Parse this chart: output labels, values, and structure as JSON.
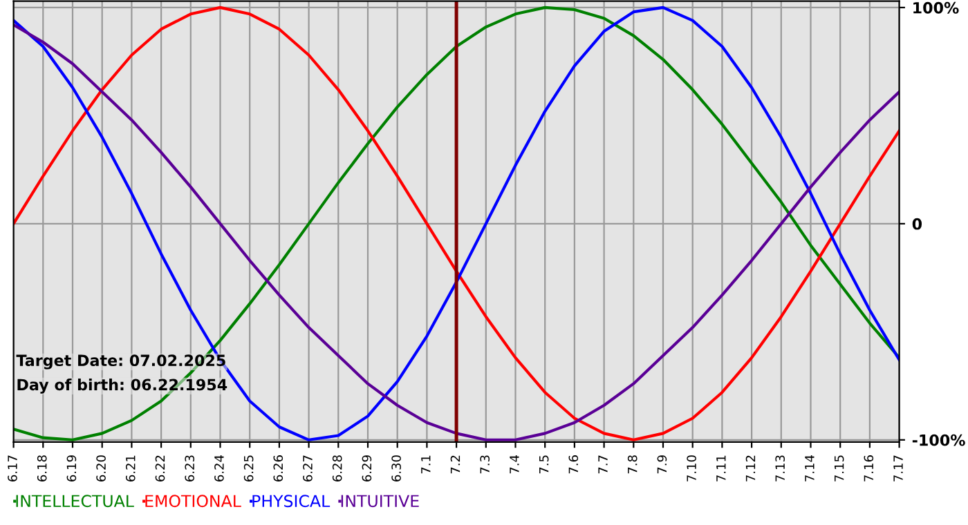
{
  "chart_data": {
    "type": "line",
    "categories": [
      "6.17",
      "6.18",
      "6.19",
      "6.20",
      "6.21",
      "6.22",
      "6.23",
      "6.24",
      "6.25",
      "6.26",
      "6.27",
      "6.28",
      "6.29",
      "6.30",
      "7.1",
      "7.2",
      "7.3",
      "7.4",
      "7.5",
      "7.6",
      "7.7",
      "7.8",
      "7.9",
      "7.10",
      "7.11",
      "7.12",
      "7.13",
      "7.14",
      "7.15",
      "7.16",
      "7.17"
    ],
    "series": [
      {
        "name": "INTELLECTUAL",
        "color": "#008000",
        "values": [
          -95,
          -99,
          -100,
          -97,
          -91,
          -82,
          -69,
          -54,
          -37,
          -19,
          0,
          19,
          37,
          54,
          69,
          82,
          91,
          97,
          100,
          99,
          95,
          87,
          76,
          62,
          46,
          28,
          10,
          -10,
          -28,
          -46,
          -62
        ]
      },
      {
        "name": "EMOTIONAL",
        "color": "#ff0000",
        "values": [
          0,
          22,
          43,
          62,
          78,
          90,
          97,
          100,
          97,
          90,
          78,
          62,
          43,
          22,
          0,
          -22,
          -43,
          -62,
          -78,
          -90,
          -97,
          -100,
          -97,
          -90,
          -78,
          -62,
          -43,
          -22,
          0,
          22,
          43
        ]
      },
      {
        "name": "PHYSICAL",
        "color": "#0000ff",
        "values": [
          94,
          82,
          63,
          40,
          14,
          -14,
          -40,
          -63,
          -82,
          -94,
          -100,
          -98,
          -89,
          -73,
          -52,
          -27,
          0,
          27,
          52,
          73,
          89,
          98,
          100,
          94,
          82,
          63,
          40,
          14,
          -14,
          -40,
          -63
        ]
      },
      {
        "name": "INTUITIVE",
        "color": "#5a0096",
        "values": [
          92,
          84,
          74,
          61,
          48,
          33,
          17,
          0,
          -17,
          -33,
          -48,
          -61,
          -74,
          -84,
          -92,
          -97,
          -100,
          -100,
          -97,
          -92,
          -84,
          -74,
          -61,
          -48,
          -33,
          -17,
          0,
          17,
          33,
          48,
          61
        ]
      }
    ],
    "ylim": [
      -101,
      103
    ],
    "yticks": [
      {
        "value": 100,
        "label": "100%"
      },
      0,
      {
        "value": -100,
        "label": "-100%"
      }
    ],
    "ref_lines": [
      {
        "axis": "x",
        "value": "7.2",
        "color": "#800000"
      }
    ],
    "annotations": [
      "Target Date: 07.02.2025",
      "Day of birth: 06.22.1954"
    ],
    "grid": true,
    "legend": "bottom left",
    "marker": "none",
    "line_style": "solid"
  }
}
